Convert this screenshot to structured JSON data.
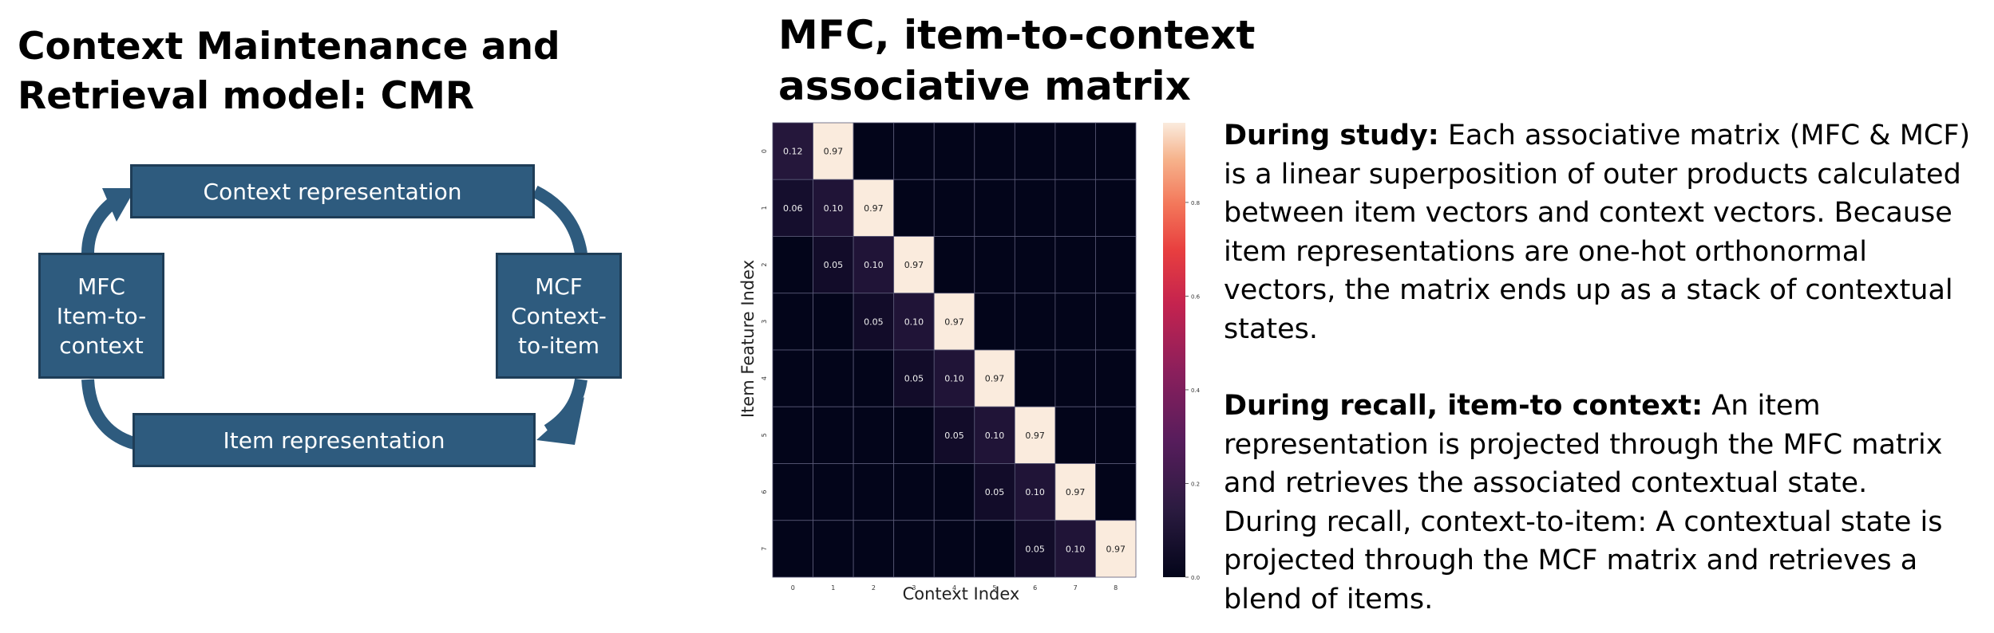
{
  "title": "Context Maintenance and Retrieval model: CMR",
  "diagram": {
    "context_box": "Context representation",
    "item_box": "Item representation",
    "mfc_box": "MFC\nItem-to-\ncontext",
    "mcf_box": "MCF\nContext-\nto-item",
    "colors": {
      "box_fill": "#2e5b7e",
      "box_border": "#1e3d57",
      "arrow": "#2e5b7e"
    }
  },
  "chart_title": "MFC, item-to-context\nassociative matrix",
  "chart_data": {
    "type": "heatmap",
    "xlabel": "Context Index",
    "ylabel": "Item Feature Index",
    "x_ticks": [
      "0",
      "1",
      "2",
      "3",
      "4",
      "5",
      "6",
      "7",
      "8"
    ],
    "y_ticks": [
      "0",
      "1",
      "2",
      "3",
      "4",
      "5",
      "6",
      "7"
    ],
    "values": [
      [
        0.12,
        0.97,
        0,
        0,
        0,
        0,
        0,
        0,
        0
      ],
      [
        0.06,
        0.1,
        0.97,
        0,
        0,
        0,
        0,
        0,
        0
      ],
      [
        0,
        0.05,
        0.1,
        0.97,
        0,
        0,
        0,
        0,
        0
      ],
      [
        0,
        0,
        0.05,
        0.1,
        0.97,
        0,
        0,
        0,
        0
      ],
      [
        0,
        0,
        0,
        0.05,
        0.1,
        0.97,
        0,
        0,
        0
      ],
      [
        0,
        0,
        0,
        0,
        0.05,
        0.1,
        0.97,
        0,
        0
      ],
      [
        0,
        0,
        0,
        0,
        0,
        0.05,
        0.1,
        0.97,
        0
      ],
      [
        0,
        0,
        0,
        0,
        0,
        0,
        0.05,
        0.1,
        0.97
      ]
    ],
    "cell_labels": [
      [
        "0.12",
        "0.97",
        "",
        "",
        "",
        "",
        "",
        "",
        ""
      ],
      [
        "0.06",
        "0.10",
        "0.97",
        "",
        "",
        "",
        "",
        "",
        ""
      ],
      [
        "",
        "0.05",
        "0.10",
        "0.97",
        "",
        "",
        "",
        "",
        ""
      ],
      [
        "",
        "",
        "0.05",
        "0.10",
        "0.97",
        "",
        "",
        "",
        ""
      ],
      [
        "",
        "",
        "",
        "0.05",
        "0.10",
        "0.97",
        "",
        "",
        ""
      ],
      [
        "",
        "",
        "",
        "",
        "0.05",
        "0.10",
        "0.97",
        "",
        ""
      ],
      [
        "",
        "",
        "",
        "",
        "",
        "0.05",
        "0.10",
        "0.97",
        ""
      ],
      [
        "",
        "",
        "",
        "",
        "",
        "",
        "0.05",
        "0.10",
        "0.97"
      ]
    ],
    "colorbar_ticks": [
      "0.0",
      "0.2",
      "0.4",
      "0.6",
      "0.8"
    ],
    "colorbar_values": [
      0.0,
      0.2,
      0.4,
      0.6,
      0.8
    ],
    "zlim": [
      0,
      0.97
    ],
    "colormap": "rocket"
  },
  "description": {
    "para1_bold": "During study:",
    "para1_text": " Each associative matrix (MFC & MCF) is a linear superposition of outer products calculated between item vectors and context vectors. Because item representations are one-hot orthonormal vectors, the matrix ends up as a stack of contextual states.",
    "para2_bold": "During recall, item-to context:",
    "para2_text": " An item representation is projected through the MFC matrix and retrieves the associated contextual state.",
    "para3_text": "During recall, context-to-item: A contextual state is projected through the MCF matrix and retrieves a blend of items."
  }
}
